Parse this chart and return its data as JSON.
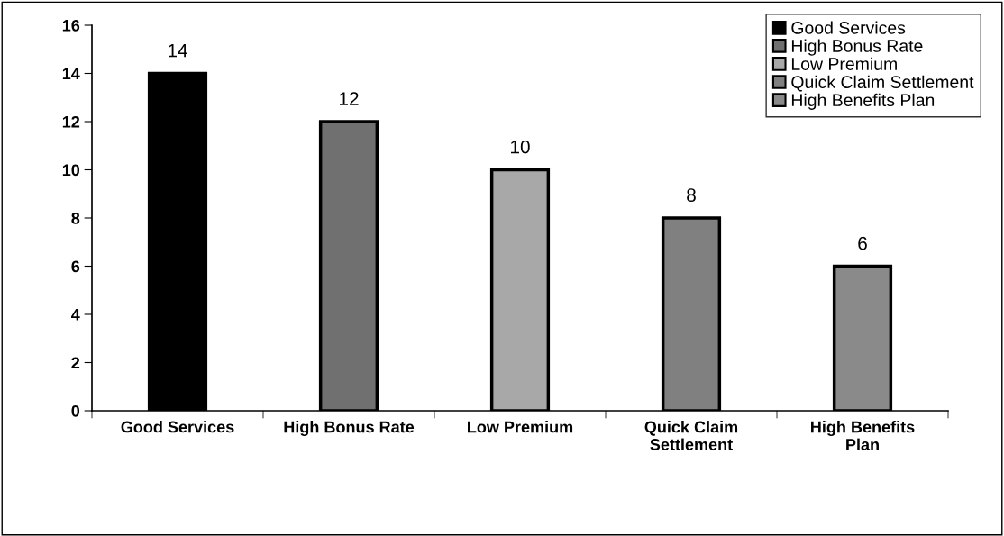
{
  "chart_data": {
    "type": "bar",
    "categories": [
      "Good Services",
      "High Bonus Rate",
      "Low Premium",
      "Quick Claim\nSettlement",
      "High Benefits\nPlan"
    ],
    "series": [
      {
        "name": "Good Services",
        "color": "#000000",
        "values": [
          14,
          null,
          null,
          null,
          null
        ]
      },
      {
        "name": "High Bonus Rate",
        "color": "#707070",
        "values": [
          null,
          12,
          null,
          null,
          null
        ]
      },
      {
        "name": "Low Premium",
        "color": "#a8a8a8",
        "values": [
          null,
          null,
          10,
          null,
          null
        ]
      },
      {
        "name": "Quick Claim Settlement",
        "color": "#808080",
        "values": [
          null,
          null,
          null,
          8,
          null
        ]
      },
      {
        "name": "High Benefits Plan",
        "color": "#8a8a8a",
        "values": [
          null,
          null,
          null,
          null,
          6
        ]
      }
    ],
    "ylim": [
      0,
      16
    ],
    "yticks": [
      0,
      2,
      4,
      6,
      8,
      10,
      12,
      14,
      16
    ],
    "data_labels": true,
    "grid": false,
    "legend": "top right"
  }
}
